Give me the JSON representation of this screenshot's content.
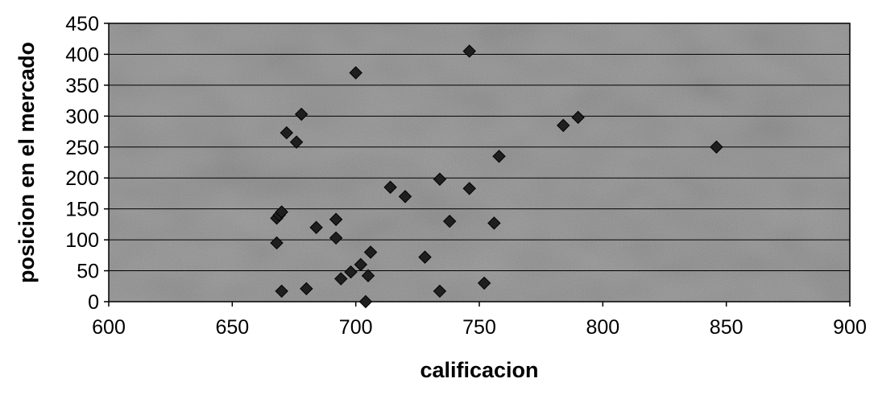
{
  "chart_data": {
    "type": "scatter",
    "title": "",
    "xlabel": "calificacion",
    "ylabel": "posicion en el mercado",
    "xlim": [
      600,
      900
    ],
    "ylim": [
      0,
      450
    ],
    "x_ticks": [
      600,
      650,
      700,
      750,
      800,
      850,
      900
    ],
    "y_ticks": [
      0,
      50,
      100,
      150,
      200,
      250,
      300,
      350,
      400,
      450
    ],
    "x_tick_labels": [
      "600",
      "650",
      "700",
      "750",
      "800",
      "850",
      "900"
    ],
    "y_tick_labels": [
      "0",
      "50",
      "100",
      "150",
      "200",
      "250",
      "300",
      "350",
      "400",
      "450"
    ],
    "grid": "horizontal",
    "legend": "none",
    "plot_background": "#9a9a9a",
    "marker_color": "#1f1f1f",
    "marker_shape": "diamond",
    "series": [
      {
        "points": [
          [
            668,
            135
          ],
          [
            669,
            140
          ],
          [
            670,
            145
          ],
          [
            668,
            95
          ],
          [
            670,
            17
          ],
          [
            680,
            21
          ],
          [
            672,
            273
          ],
          [
            676,
            258
          ],
          [
            678,
            303
          ],
          [
            684,
            120
          ],
          [
            692,
            103
          ],
          [
            692,
            133
          ],
          [
            694,
            37
          ],
          [
            698,
            48
          ],
          [
            702,
            60
          ],
          [
            706,
            80
          ],
          [
            705,
            42
          ],
          [
            704,
            0
          ],
          [
            700,
            370
          ],
          [
            714,
            185
          ],
          [
            720,
            170
          ],
          [
            728,
            72
          ],
          [
            734,
            198
          ],
          [
            734,
            17
          ],
          [
            738,
            130
          ],
          [
            746,
            183
          ],
          [
            746,
            405
          ],
          [
            752,
            30
          ],
          [
            756,
            127
          ],
          [
            758,
            235
          ],
          [
            784,
            285
          ],
          [
            790,
            298
          ],
          [
            846,
            250
          ]
        ]
      }
    ]
  }
}
